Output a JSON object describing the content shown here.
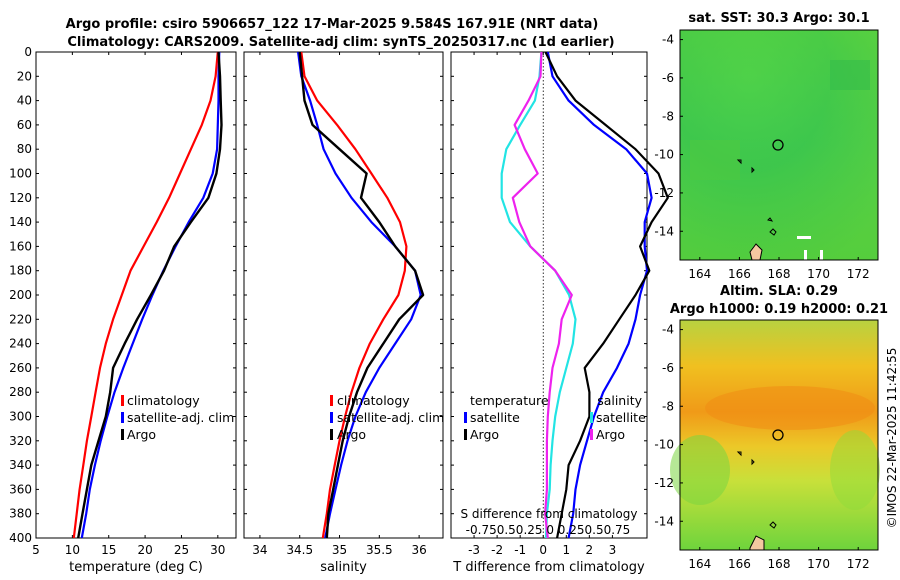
{
  "title": {
    "line1": "Argo profile: csiro 5906657_122 17-Mar-2025 9.584S 167.91E (NRT data)",
    "line2": "Climatology: CARS2009. Satellite-adj clim: synTS_20250317.nc (1d earlier)"
  },
  "watermark": "©IMOS 22-Mar-2025 11:42:55",
  "colors": {
    "climatology": "#ff0000",
    "satellite": "#0000ff",
    "argo": "#000000",
    "sat_salinity": "#22e4e4",
    "argo_salinity": "#ee22ee"
  },
  "chart_data": [
    {
      "type": "line",
      "name": "temperature-profile",
      "xlabel": "temperature (deg C)",
      "ylabel": "",
      "xlim": [
        5,
        32.5
      ],
      "ylim": [
        400,
        0
      ],
      "xticks": [
        "5",
        "10",
        "15",
        "20",
        "25",
        "30"
      ],
      "yticks": [
        "0",
        "20",
        "40",
        "60",
        "80",
        "100",
        "120",
        "140",
        "160",
        "180",
        "200",
        "220",
        "240",
        "260",
        "280",
        "300",
        "320",
        "340",
        "360",
        "380",
        "400"
      ],
      "legend": [
        "climatology",
        "satellite-adj. clim",
        "Argo"
      ],
      "series": [
        {
          "name": "climatology",
          "depth": [
            0,
            20,
            40,
            60,
            80,
            100,
            120,
            140,
            160,
            180,
            200,
            220,
            240,
            260,
            280,
            300,
            320,
            340,
            360,
            380,
            400
          ],
          "values": [
            30.0,
            29.7,
            29.0,
            27.8,
            26.3,
            24.8,
            23.3,
            21.6,
            19.8,
            18.0,
            16.8,
            15.6,
            14.6,
            13.8,
            13.2,
            12.6,
            12.0,
            11.5,
            11.0,
            10.6,
            10.2
          ]
        },
        {
          "name": "satellite-adj. clim",
          "depth": [
            0,
            20,
            40,
            60,
            80,
            100,
            120,
            140,
            160,
            180,
            200,
            220,
            240,
            260,
            280,
            300,
            320,
            340,
            360,
            380,
            400
          ],
          "values": [
            30.2,
            30.1,
            30.1,
            30.0,
            29.9,
            29.3,
            28.0,
            26.0,
            24.2,
            22.5,
            21.0,
            19.6,
            18.3,
            17.0,
            15.8,
            14.8,
            13.9,
            13.1,
            12.4,
            11.9,
            11.3
          ]
        },
        {
          "name": "Argo",
          "depth": [
            0,
            20,
            40,
            60,
            80,
            100,
            120,
            140,
            160,
            180,
            200,
            220,
            240,
            260,
            280,
            300,
            320,
            340,
            360,
            380,
            400
          ],
          "values": [
            30.1,
            30.3,
            30.4,
            30.5,
            30.3,
            29.8,
            28.7,
            26.3,
            24.0,
            22.6,
            20.8,
            18.9,
            17.2,
            15.6,
            15.2,
            14.6,
            13.6,
            12.6,
            12.0,
            11.4,
            10.8
          ]
        }
      ]
    },
    {
      "type": "line",
      "name": "salinity-profile",
      "xlabel": "salinity",
      "xlim": [
        33.8,
        36.3
      ],
      "ylim": [
        400,
        0
      ],
      "xticks": [
        "34",
        "34.5",
        "35",
        "35.5",
        "36"
      ],
      "legend": [
        "climatology",
        "satellite-adj. clim",
        "Argo"
      ],
      "series": [
        {
          "name": "climatology",
          "depth": [
            0,
            20,
            40,
            60,
            80,
            100,
            120,
            140,
            160,
            180,
            200,
            220,
            240,
            260,
            280,
            300,
            320,
            340,
            360,
            380,
            400
          ],
          "values": [
            34.52,
            34.56,
            34.72,
            34.97,
            35.2,
            35.4,
            35.6,
            35.76,
            35.84,
            35.82,
            35.74,
            35.55,
            35.38,
            35.25,
            35.15,
            35.07,
            35.0,
            34.94,
            34.88,
            34.84,
            34.79
          ]
        },
        {
          "name": "satellite-adj. clim",
          "depth": [
            0,
            20,
            40,
            60,
            80,
            100,
            120,
            140,
            160,
            180,
            200,
            220,
            240,
            260,
            280,
            300,
            320,
            340,
            360,
            380,
            400
          ],
          "values": [
            34.48,
            34.52,
            34.63,
            34.72,
            34.8,
            34.95,
            35.15,
            35.4,
            35.7,
            35.95,
            36.02,
            35.9,
            35.7,
            35.5,
            35.33,
            35.2,
            35.1,
            35.02,
            34.95,
            34.88,
            34.82
          ]
        },
        {
          "name": "Argo",
          "depth": [
            0,
            20,
            40,
            60,
            80,
            100,
            120,
            140,
            160,
            180,
            200,
            220,
            240,
            260,
            280,
            300,
            320,
            340,
            360,
            380,
            400
          ],
          "values": [
            34.5,
            34.53,
            34.56,
            34.66,
            35.0,
            35.34,
            35.27,
            35.5,
            35.7,
            35.95,
            36.05,
            35.75,
            35.55,
            35.35,
            35.22,
            35.12,
            35.04,
            34.98,
            34.92,
            34.86,
            34.84
          ]
        }
      ]
    },
    {
      "type": "line",
      "name": "difference-profile",
      "xlabel": "T difference from climatology",
      "xlim": [
        -4,
        4.5
      ],
      "ylim": [
        400,
        0
      ],
      "xticks": [
        "-3",
        "-2",
        "-1",
        "0",
        "1",
        "2",
        "3"
      ],
      "secondary_xlabel": "S difference from climatology",
      "secondary_xticks": "-0.750.50.25 0 0.250.50.75",
      "legend_headings": [
        "temperature",
        "salinity"
      ],
      "legend": [
        "satellite",
        "Argo",
        "satellite",
        "Argo"
      ],
      "series": [
        {
          "name": "satellite (temperature)",
          "depth": [
            0,
            20,
            40,
            60,
            80,
            100,
            120,
            140,
            160,
            180,
            200,
            220,
            240,
            260,
            280,
            300,
            320,
            340,
            360,
            380,
            400
          ],
          "values": [
            0.2,
            0.4,
            1.1,
            2.2,
            3.6,
            4.5,
            4.7,
            4.4,
            4.4,
            4.5,
            4.2,
            4.0,
            3.7,
            3.2,
            2.6,
            2.2,
            1.9,
            1.6,
            1.4,
            1.3,
            1.1
          ]
        },
        {
          "name": "Argo (temperature)",
          "depth": [
            0,
            20,
            40,
            60,
            80,
            100,
            120,
            140,
            160,
            180,
            200,
            220,
            240,
            260,
            280,
            300,
            320,
            340,
            360,
            380,
            400
          ],
          "values": [
            0.1,
            0.6,
            1.4,
            2.7,
            4.0,
            5.0,
            5.4,
            4.7,
            4.2,
            4.6,
            4.0,
            3.3,
            2.6,
            1.8,
            2.0,
            2.0,
            1.6,
            1.1,
            1.0,
            0.8,
            0.6
          ]
        },
        {
          "name": "satellite (salinity)",
          "depth": [
            0,
            20,
            40,
            60,
            80,
            100,
            120,
            140,
            160,
            180,
            200,
            220,
            240,
            260,
            280,
            300,
            320,
            340,
            360,
            380,
            400
          ],
          "values": [
            -0.02,
            -0.04,
            -0.09,
            -0.25,
            -0.4,
            -0.45,
            -0.45,
            -0.36,
            -0.14,
            0.13,
            0.28,
            0.35,
            0.32,
            0.25,
            0.18,
            0.13,
            0.1,
            0.08,
            0.07,
            0.04,
            0.03
          ]
        },
        {
          "name": "Argo (salinity)",
          "depth": [
            0,
            20,
            40,
            60,
            80,
            100,
            120,
            140,
            160,
            180,
            200,
            220,
            240,
            260,
            280,
            300,
            320,
            340,
            360,
            380,
            400
          ],
          "values": [
            -0.02,
            -0.03,
            -0.16,
            -0.31,
            -0.2,
            -0.06,
            -0.33,
            -0.26,
            -0.14,
            0.13,
            0.31,
            0.2,
            0.17,
            0.1,
            0.07,
            0.05,
            0.04,
            0.04,
            0.04,
            0.02,
            0.05
          ]
        }
      ]
    },
    {
      "type": "heatmap",
      "name": "sst-map",
      "title": "sat. SST: 30.3 Argo: 30.1",
      "xlim": [
        163,
        173
      ],
      "ylim": [
        -15.5,
        -3.5
      ],
      "xticks": [
        "164",
        "166",
        "168",
        "170",
        "172"
      ],
      "yticks": [
        "-4",
        "-6",
        "-8",
        "-10",
        "-12",
        "-14"
      ],
      "marker": {
        "lon": 167.91,
        "lat": -9.584
      }
    },
    {
      "type": "heatmap",
      "name": "sla-map",
      "title": "Altim. SLA: 0.29",
      "subtitle": "Argo h1000: 0.19 h2000: 0.21",
      "xlim": [
        163,
        173
      ],
      "ylim": [
        -15.5,
        -3.5
      ],
      "xticks": [
        "164",
        "166",
        "168",
        "170",
        "172"
      ],
      "yticks": [
        "-4",
        "-6",
        "-8",
        "-10",
        "-12",
        "-14"
      ],
      "marker": {
        "lon": 167.91,
        "lat": -9.584
      }
    }
  ]
}
